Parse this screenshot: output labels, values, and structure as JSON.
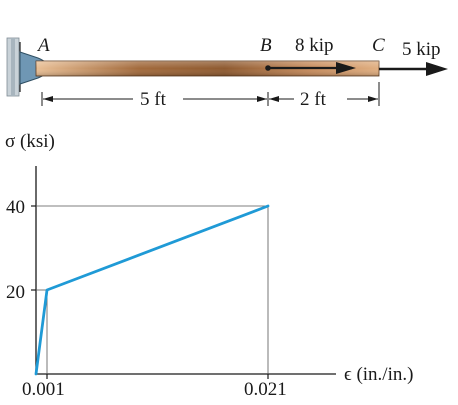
{
  "beam": {
    "point_a": "A",
    "point_b": "B",
    "point_c": "C",
    "load_b": "8 kip",
    "load_c": "5 kip",
    "dim_ab": "5 ft",
    "dim_bc": "2 ft"
  },
  "colors": {
    "rod_light": "#e2b48a",
    "rod_dark": "#9b6336",
    "support": "#b9c6cf",
    "bracket": "#6f97b4",
    "curve": "#1f9ad6",
    "line": "#1a1a1a",
    "guide": "#555555"
  },
  "chart_data": {
    "type": "line",
    "ylabel": "σ (ksi)",
    "xlabel": "ϵ (in./in.)",
    "x_ticks": [
      "0.001",
      "0.021"
    ],
    "y_ticks": [
      "20",
      "40"
    ],
    "series": [
      {
        "x": [
          0,
          0.001,
          0.021
        ],
        "y": [
          0,
          20,
          40
        ]
      }
    ]
  }
}
